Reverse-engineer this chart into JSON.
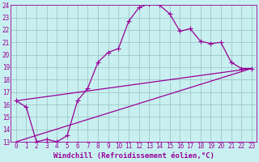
{
  "xlabel": "Windchill (Refroidissement éolien,°C)",
  "bg_color": "#c8f0f0",
  "grid_color": "#a0c8c8",
  "line_color": "#990099",
  "xlim": [
    -0.5,
    23.5
  ],
  "ylim": [
    13,
    24
  ],
  "yticks": [
    13,
    14,
    15,
    16,
    17,
    18,
    19,
    20,
    21,
    22,
    23,
    24
  ],
  "xticks": [
    0,
    1,
    2,
    3,
    4,
    5,
    6,
    7,
    8,
    9,
    10,
    11,
    12,
    13,
    14,
    15,
    16,
    17,
    18,
    19,
    20,
    21,
    22,
    23
  ],
  "line1_x": [
    0,
    1,
    2,
    3,
    4,
    5,
    6,
    7,
    8,
    9,
    10,
    11,
    12,
    13,
    14,
    15,
    16,
    17,
    18,
    19,
    20,
    21,
    22,
    23
  ],
  "line1_y": [
    16.3,
    15.8,
    13.0,
    13.2,
    13.0,
    13.5,
    16.3,
    17.3,
    19.4,
    20.2,
    20.5,
    22.7,
    23.8,
    24.1,
    24.0,
    23.3,
    21.9,
    22.1,
    21.1,
    20.9,
    21.0,
    19.4,
    18.9,
    18.9
  ],
  "line2_x": [
    0,
    23
  ],
  "line2_y": [
    16.3,
    18.9
  ],
  "line3_x": [
    0,
    23
  ],
  "line3_y": [
    13.0,
    18.9
  ],
  "marker": "+",
  "markersize": 4,
  "markeredgewidth": 0.8,
  "linewidth": 0.9,
  "tick_fontsize": 5.5,
  "label_fontsize": 6.5
}
